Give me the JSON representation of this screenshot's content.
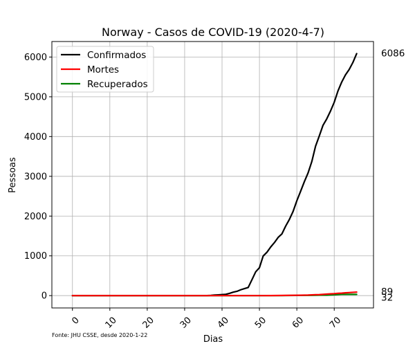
{
  "chart_data": {
    "type": "line",
    "title": "Norway - Casos de COVID-19 (2020-4-7)",
    "xlabel": "Dias",
    "ylabel": "Pessoas",
    "source": "Fonte: JHU CSSE, desde 2020-1-22",
    "xlim": [
      -5.5,
      80.5
    ],
    "ylim": [
      -310,
      6390
    ],
    "xticks": [
      0,
      10,
      20,
      30,
      40,
      50,
      60,
      70
    ],
    "yticks": [
      0,
      1000,
      2000,
      3000,
      4000,
      5000,
      6000
    ],
    "grid": true,
    "legend_position": "top-left",
    "series": [
      {
        "name": "Confirmados",
        "color": "#000000",
        "end_label": "6086",
        "points": [
          [
            0,
            0
          ],
          [
            35,
            0
          ],
          [
            36,
            1
          ],
          [
            37,
            6
          ],
          [
            38,
            15
          ],
          [
            39,
            19
          ],
          [
            40,
            25
          ],
          [
            41,
            32
          ],
          [
            42,
            56
          ],
          [
            43,
            87
          ],
          [
            44,
            108
          ],
          [
            45,
            147
          ],
          [
            46,
            176
          ],
          [
            47,
            205
          ],
          [
            48,
            400
          ],
          [
            49,
            598
          ],
          [
            50,
            702
          ],
          [
            51,
            996
          ],
          [
            52,
            1090
          ],
          [
            53,
            1221
          ],
          [
            54,
            1333
          ],
          [
            55,
            1463
          ],
          [
            56,
            1550
          ],
          [
            57,
            1746
          ],
          [
            58,
            1914
          ],
          [
            59,
            2118
          ],
          [
            60,
            2385
          ],
          [
            61,
            2621
          ],
          [
            62,
            2863
          ],
          [
            63,
            3084
          ],
          [
            64,
            3369
          ],
          [
            65,
            3755
          ],
          [
            66,
            4015
          ],
          [
            67,
            4284
          ],
          [
            68,
            4445
          ],
          [
            69,
            4641
          ],
          [
            70,
            4863
          ],
          [
            71,
            5147
          ],
          [
            72,
            5370
          ],
          [
            73,
            5550
          ],
          [
            74,
            5687
          ],
          [
            75,
            5865
          ],
          [
            76,
            6086
          ]
        ]
      },
      {
        "name": "Mortes",
        "color": "#ff0000",
        "end_label": "89",
        "points": [
          [
            0,
            0
          ],
          [
            50,
            0
          ],
          [
            53,
            1
          ],
          [
            55,
            3
          ],
          [
            57,
            6
          ],
          [
            59,
            7
          ],
          [
            61,
            10
          ],
          [
            63,
            14
          ],
          [
            64,
            19
          ],
          [
            65,
            23
          ],
          [
            66,
            25
          ],
          [
            67,
            32
          ],
          [
            68,
            39
          ],
          [
            69,
            44
          ],
          [
            70,
            50
          ],
          [
            71,
            59
          ],
          [
            72,
            62
          ],
          [
            73,
            71
          ],
          [
            74,
            76
          ],
          [
            75,
            83
          ],
          [
            76,
            89
          ]
        ]
      },
      {
        "name": "Recuperados",
        "color": "#008000",
        "end_label": "32",
        "points": [
          [
            0,
            0
          ],
          [
            55,
            0
          ],
          [
            56,
            1
          ],
          [
            60,
            6
          ],
          [
            64,
            7
          ],
          [
            66,
            11
          ],
          [
            68,
            12
          ],
          [
            70,
            20
          ],
          [
            72,
            32
          ],
          [
            76,
            32
          ]
        ]
      }
    ]
  }
}
